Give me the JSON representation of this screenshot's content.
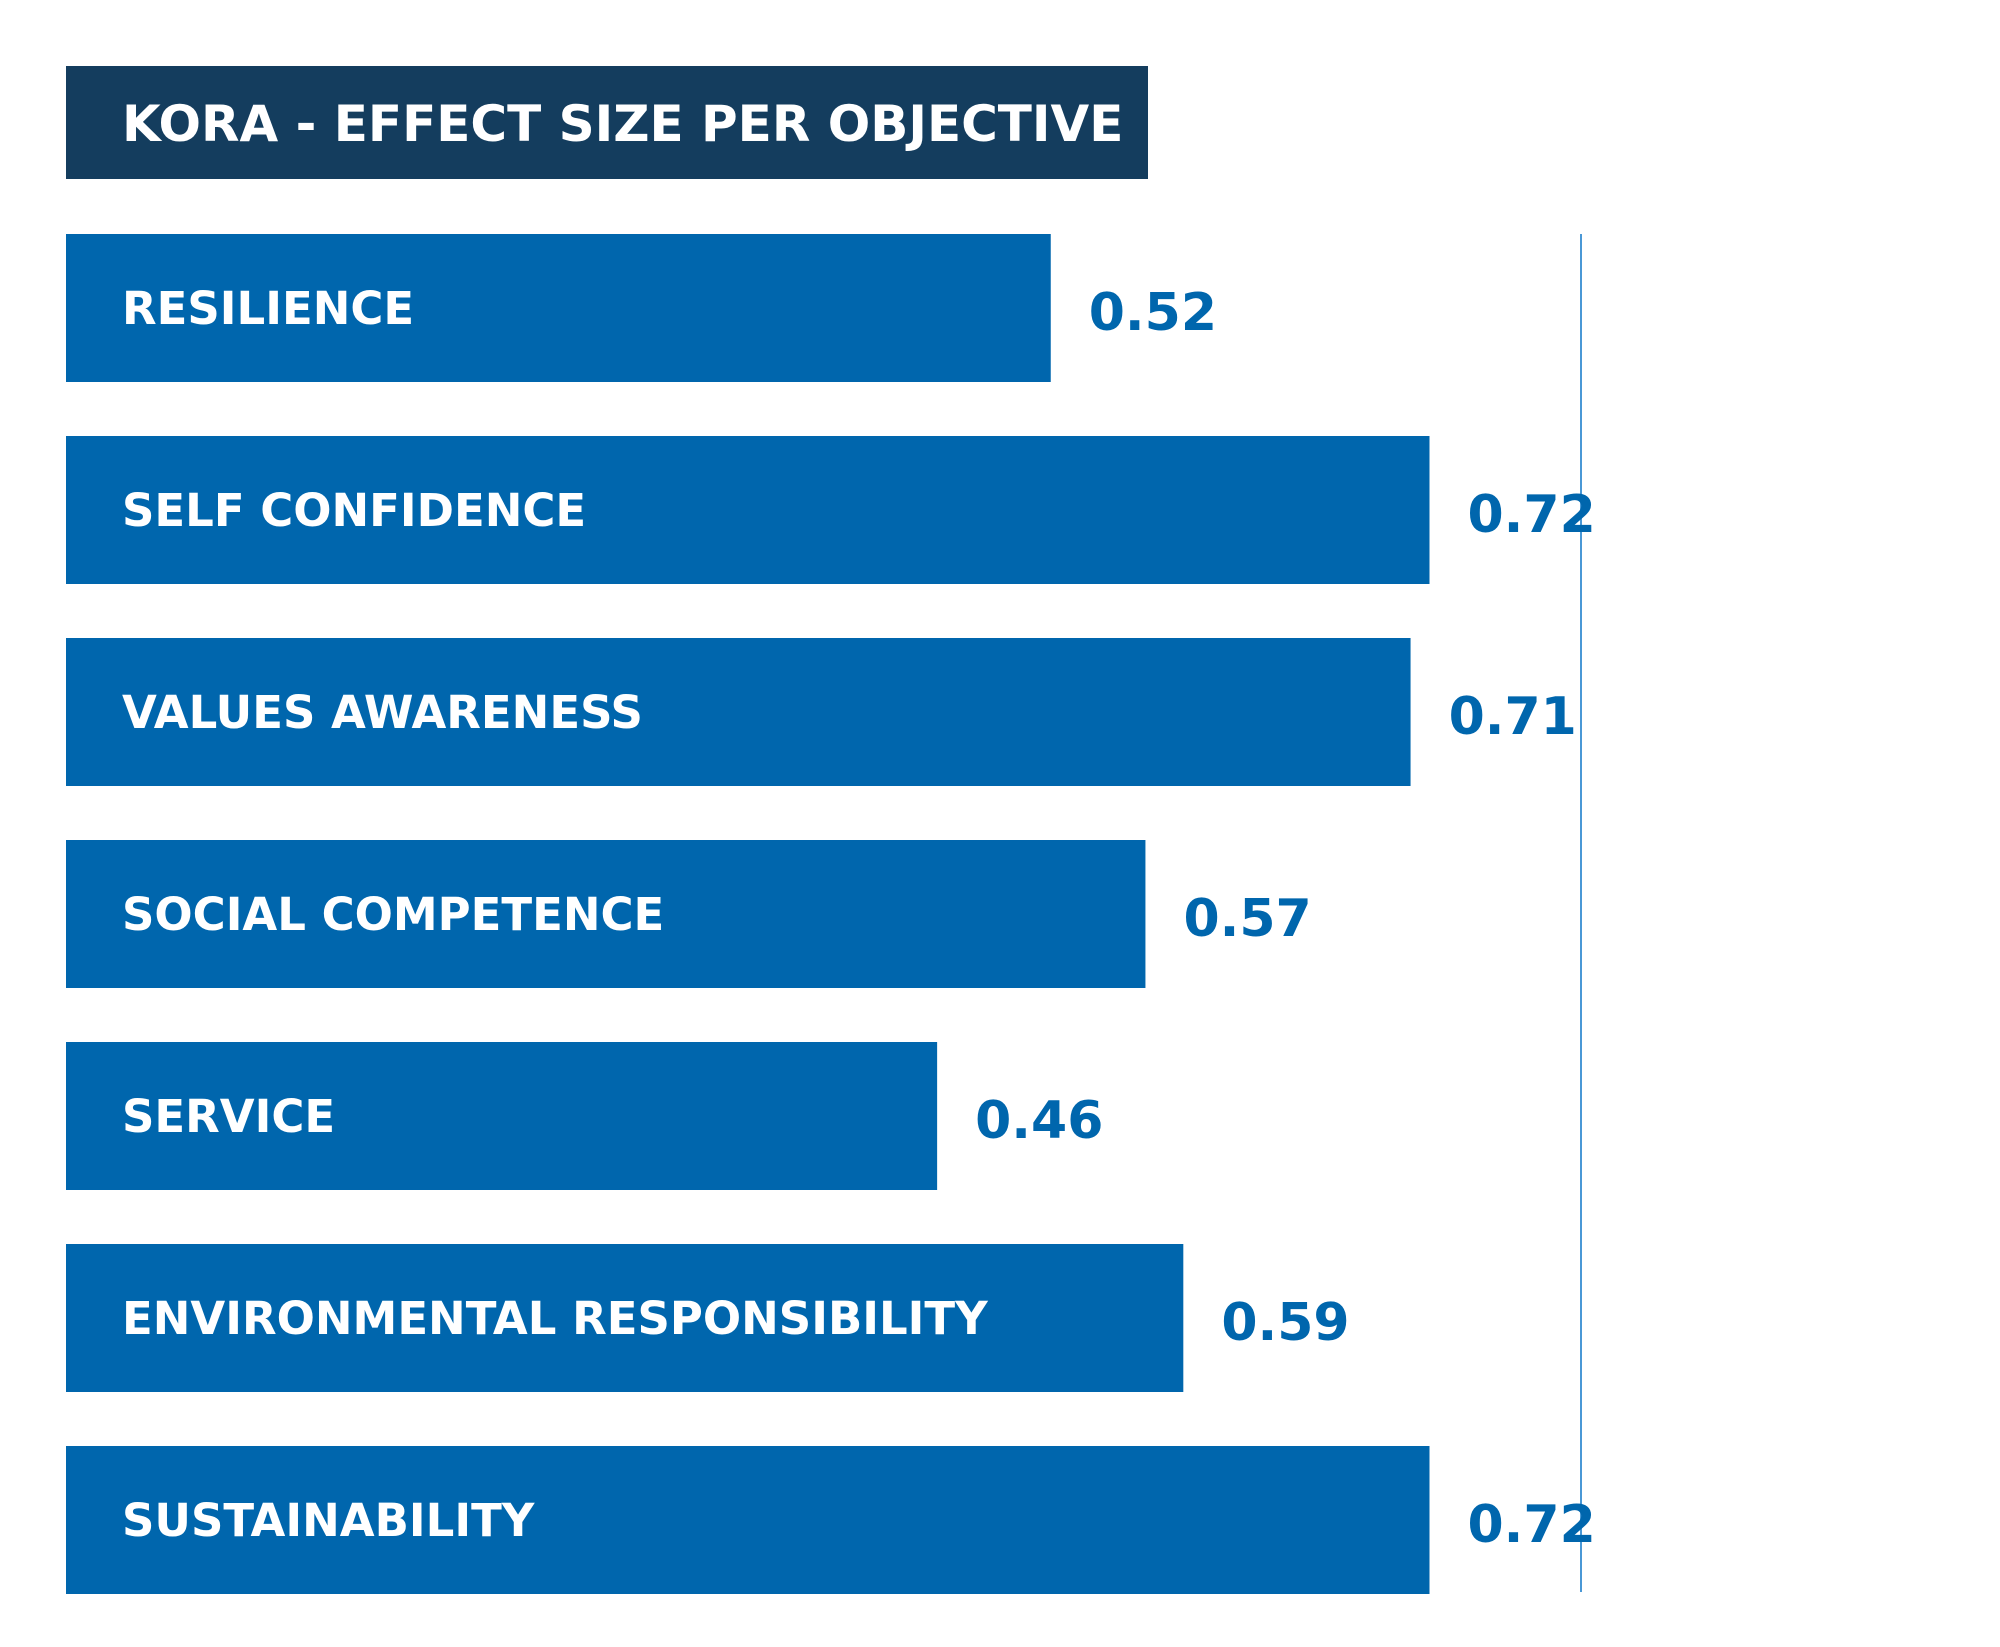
{
  "chart_data": {
    "type": "bar",
    "orientation": "horizontal",
    "title": "KORA - EFFECT SIZE PER OBJECTIVE",
    "categories": [
      "RESILIENCE",
      "SELF CONFIDENCE",
      "VALUES AWARENESS",
      "SOCIAL COMPETENCE",
      "SERVICE",
      "ENVIRONMENTAL RESPONSIBILITY",
      "SUSTAINABILITY"
    ],
    "values": [
      0.52,
      0.72,
      0.71,
      0.57,
      0.46,
      0.59,
      0.72
    ],
    "value_labels": [
      "0.52",
      "0.72",
      "0.71",
      "0.57",
      "0.46",
      "0.59",
      "0.72"
    ],
    "xlim": [
      0,
      0.8
    ],
    "reference_line": 0.8,
    "grid": false,
    "colors": {
      "bar": "#0066ad",
      "title_box": "#143d5e",
      "value_text": "#0066ad",
      "reference_line": "#4a98d6"
    }
  }
}
